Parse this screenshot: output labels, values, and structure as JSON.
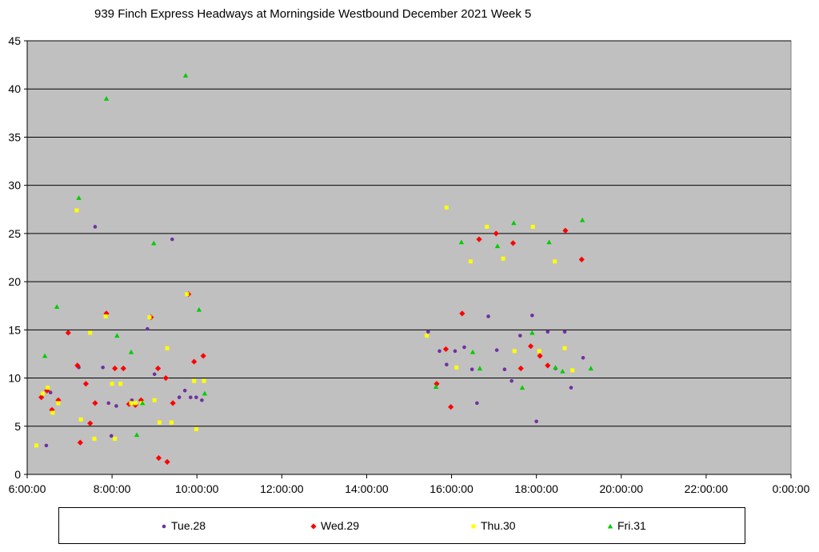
{
  "chart_data": {
    "type": "scatter",
    "title": "939 Finch Express Headways at Morningside Westbound December 2021  Week 5",
    "xlabel": "",
    "ylabel": "",
    "xlim": [
      "6:00:00",
      "0:00:00"
    ],
    "x_ticks": [
      "6:00:00",
      "8:00:00",
      "10:00:00",
      "12:00:00",
      "14:00:00",
      "16:00:00",
      "18:00:00",
      "20:00:00",
      "22:00:00",
      "0:00:00"
    ],
    "ylim": [
      0,
      45
    ],
    "y_ticks": [
      "0",
      "5",
      "10",
      "15",
      "20",
      "25",
      "30",
      "35",
      "40",
      "45"
    ],
    "grid": "horizontal",
    "legend_position": "bottom",
    "series": [
      {
        "name": "Tue.28",
        "color": "#7030A0",
        "marker": "circle",
        "points": [
          [
            "6:27",
            3.0
          ],
          [
            "6:33",
            8.5
          ],
          [
            "7:13",
            11.1
          ],
          [
            "7:36",
            25.7
          ],
          [
            "7:47",
            11.1
          ],
          [
            "7:55",
            7.4
          ],
          [
            "7:59",
            4.0
          ],
          [
            "8:06",
            7.1
          ],
          [
            "8:28",
            7.7
          ],
          [
            "8:50",
            15.1
          ],
          [
            "9:00",
            10.4
          ],
          [
            "9:25",
            24.4
          ],
          [
            "9:35",
            8.0
          ],
          [
            "9:43",
            8.7
          ],
          [
            "9:51",
            8.0
          ],
          [
            "9:59",
            8.0
          ],
          [
            "10:07",
            7.7
          ],
          [
            "15:27",
            14.8
          ],
          [
            "15:43",
            12.8
          ],
          [
            "15:53",
            11.4
          ],
          [
            "16:05",
            12.8
          ],
          [
            "16:18",
            13.2
          ],
          [
            "16:29",
            10.9
          ],
          [
            "16:36",
            7.4
          ],
          [
            "16:52",
            16.4
          ],
          [
            "17:04",
            12.9
          ],
          [
            "17:15",
            10.9
          ],
          [
            "17:25",
            9.7
          ],
          [
            "17:37",
            14.4
          ],
          [
            "17:54",
            16.5
          ],
          [
            "18:00",
            5.5
          ],
          [
            "18:16",
            14.8
          ],
          [
            "18:27",
            11.0
          ],
          [
            "18:40",
            14.8
          ],
          [
            "18:49",
            9.0
          ],
          [
            "19:06",
            12.1
          ]
        ]
      },
      {
        "name": "Wed.29",
        "color": "#FF0000",
        "marker": "diamond",
        "points": [
          [
            "6:20",
            8.0
          ],
          [
            "6:28",
            8.7
          ],
          [
            "6:35",
            6.7
          ],
          [
            "6:44",
            7.7
          ],
          [
            "6:58",
            14.7
          ],
          [
            "7:11",
            11.3
          ],
          [
            "7:15",
            3.3
          ],
          [
            "7:23",
            9.4
          ],
          [
            "7:29",
            5.3
          ],
          [
            "7:36",
            7.4
          ],
          [
            "7:52",
            16.7
          ],
          [
            "8:04",
            11.0
          ],
          [
            "8:16",
            11.0
          ],
          [
            "8:24",
            7.3
          ],
          [
            "8:33",
            7.2
          ],
          [
            "8:41",
            7.7
          ],
          [
            "8:55",
            16.3
          ],
          [
            "9:05",
            11.0
          ],
          [
            "9:06",
            1.7
          ],
          [
            "9:16",
            10.0
          ],
          [
            "9:18",
            1.3
          ],
          [
            "9:26",
            7.4
          ],
          [
            "9:48",
            18.7
          ],
          [
            "9:56",
            11.7
          ],
          [
            "10:09",
            12.3
          ],
          [
            "15:39",
            9.4
          ],
          [
            "15:52",
            13.0
          ],
          [
            "15:59",
            7.0
          ],
          [
            "16:15",
            16.7
          ],
          [
            "16:39",
            24.4
          ],
          [
            "17:03",
            25.0
          ],
          [
            "17:27",
            24.0
          ],
          [
            "17:38",
            11.0
          ],
          [
            "17:52",
            13.3
          ],
          [
            "18:05",
            12.3
          ],
          [
            "18:16",
            11.3
          ],
          [
            "18:41",
            25.3
          ],
          [
            "19:04",
            22.3
          ]
        ]
      },
      {
        "name": "Thu.30",
        "color": "#FFFF00",
        "marker": "square",
        "points": [
          [
            "6:13",
            3.0
          ],
          [
            "6:22",
            8.4
          ],
          [
            "6:29",
            9.0
          ],
          [
            "6:36",
            6.4
          ],
          [
            "6:44",
            7.4
          ],
          [
            "7:10",
            27.4
          ],
          [
            "7:16",
            5.7
          ],
          [
            "7:29",
            14.7
          ],
          [
            "7:35",
            3.7
          ],
          [
            "7:51",
            16.4
          ],
          [
            "8:00",
            9.4
          ],
          [
            "8:04",
            3.7
          ],
          [
            "8:12",
            9.4
          ],
          [
            "8:27",
            7.4
          ],
          [
            "8:33",
            7.4
          ],
          [
            "8:42",
            7.4
          ],
          [
            "8:53",
            16.3
          ],
          [
            "9:00",
            7.7
          ],
          [
            "9:07",
            5.4
          ],
          [
            "9:18",
            13.1
          ],
          [
            "9:24",
            5.4
          ],
          [
            "9:46",
            18.7
          ],
          [
            "9:56",
            9.7
          ],
          [
            "9:59",
            4.7
          ],
          [
            "10:10",
            9.7
          ],
          [
            "15:25",
            14.4
          ],
          [
            "15:53",
            27.7
          ],
          [
            "16:07",
            11.1
          ],
          [
            "16:27",
            22.1
          ],
          [
            "16:50",
            25.7
          ],
          [
            "17:13",
            22.4
          ],
          [
            "17:29",
            12.8
          ],
          [
            "17:55",
            25.7
          ],
          [
            "18:04",
            12.8
          ],
          [
            "18:26",
            22.1
          ],
          [
            "18:40",
            13.1
          ],
          [
            "18:51",
            10.8
          ]
        ]
      },
      {
        "name": "Fri.31",
        "color": "#00CC00",
        "marker": "triangle",
        "points": [
          [
            "6:25",
            12.3
          ],
          [
            "6:42",
            17.4
          ],
          [
            "7:13",
            28.7
          ],
          [
            "7:52",
            39.0
          ],
          [
            "8:07",
            14.4
          ],
          [
            "8:27",
            12.7
          ],
          [
            "8:35",
            4.1
          ],
          [
            "8:43",
            7.4
          ],
          [
            "8:59",
            24.0
          ],
          [
            "9:44",
            41.4
          ],
          [
            "10:03",
            17.1
          ],
          [
            "10:11",
            8.4
          ],
          [
            "15:38",
            9.1
          ],
          [
            "16:14",
            24.1
          ],
          [
            "16:30",
            12.7
          ],
          [
            "16:40",
            11.0
          ],
          [
            "17:05",
            23.7
          ],
          [
            "17:28",
            26.1
          ],
          [
            "17:40",
            9.0
          ],
          [
            "17:54",
            14.7
          ],
          [
            "18:18",
            24.1
          ],
          [
            "18:27",
            11.1
          ],
          [
            "18:37",
            10.7
          ],
          [
            "19:05",
            26.4
          ],
          [
            "19:17",
            11.0
          ]
        ]
      }
    ]
  }
}
